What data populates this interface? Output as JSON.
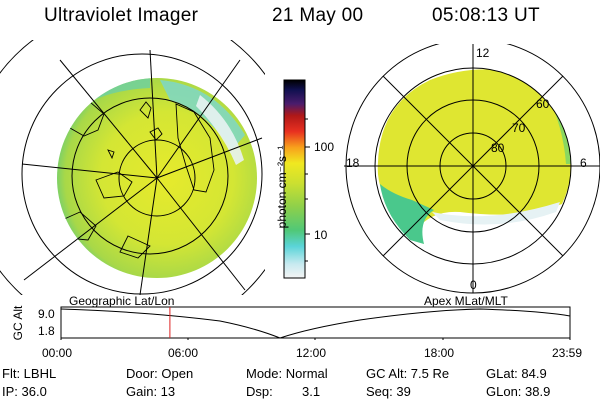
{
  "header": {
    "title": "Ultraviolet Imager",
    "date": "21 May 00",
    "time": "05:08:13 UT"
  },
  "colorbar": {
    "unit_label": "photon cm⁻²s⁻¹",
    "ticks": [
      {
        "label": "100",
        "value": 100
      },
      {
        "label": "10",
        "value": 10
      }
    ]
  },
  "polar_plot": {
    "mlt_labels": {
      "top": "12",
      "left": "18",
      "right": "6",
      "bottom": "0"
    },
    "lat_labels": [
      "60",
      "70",
      "80"
    ]
  },
  "strip": {
    "axis_title": "GC Alt",
    "y_ticks": [
      "9.0",
      "1.8"
    ],
    "left_title": "Geographic Lat/Lon",
    "right_title": "Apex MLat/MLT",
    "x_ticks": [
      "00:00",
      "06:00",
      "12:00",
      "18:00",
      "23:59"
    ],
    "current_time_hours": 5.137,
    "colors": {
      "marker": "#dd2222"
    }
  },
  "info": {
    "flt": "Flt: LBHL",
    "ip": "IP: 36.0",
    "door": "Door: Open",
    "gain": "Gain: 13",
    "mode": "Mode: Normal",
    "dsp_label": "Dsp:",
    "dsp_value": "3.1",
    "gc_alt": "GC Alt: 7.5 Re",
    "seq": "Seq: 39",
    "glat": "GLat: 84.9",
    "glon": "GLon: 38.9"
  }
}
